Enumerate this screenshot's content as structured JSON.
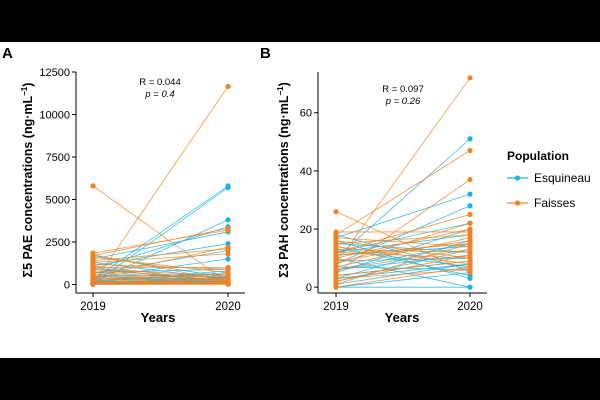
{
  "background_color": "#000000",
  "panel_background_color": "#ffffff",
  "chart_data": [
    {
      "type": "line",
      "panel_label": "A",
      "title": "",
      "xlabel": "Years",
      "ylabel": "Σ5 PAE concentrations (ng·mL",
      "ylabel_superscript": "−1",
      "ylabel_close": ")",
      "x": [
        "2019",
        "2020"
      ],
      "ylim": [
        -500,
        12500
      ],
      "yticks": [
        0,
        2500,
        5000,
        7500,
        10000,
        12500
      ],
      "ytick_labels": [
        "0",
        "2500",
        "5000",
        "7500",
        "10000",
        "12500"
      ],
      "annotation": {
        "r_label": "R = 0.044",
        "p_label": "p = 0.4"
      },
      "series": [
        {
          "name": "Esquineau",
          "color": "#1ab3ea",
          "pairs": [
            [
              50,
              5700
            ],
            [
              300,
              5800
            ],
            [
              120,
              3800
            ],
            [
              900,
              3400
            ],
            [
              1500,
              3100
            ],
            [
              1100,
              2400
            ],
            [
              650,
              2000
            ],
            [
              400,
              1500
            ],
            [
              700,
              900
            ],
            [
              200,
              800
            ],
            [
              500,
              600
            ],
            [
              350,
              500
            ],
            [
              60,
              450
            ],
            [
              250,
              400
            ],
            [
              150,
              350
            ],
            [
              100,
              300
            ],
            [
              40,
              250
            ],
            [
              900,
              200
            ],
            [
              30,
              150
            ],
            [
              400,
              120
            ],
            [
              80,
              100
            ],
            [
              200,
              80
            ],
            [
              1000,
              60
            ],
            [
              20,
              50
            ],
            [
              10,
              30
            ],
            [
              1700,
              400
            ],
            [
              1300,
              300
            ],
            [
              150,
              700
            ],
            [
              80,
              200
            ],
            [
              500,
              100
            ]
          ]
        },
        {
          "name": "Faisses",
          "color": "#f58220",
          "pairs": [
            [
              30,
              11650
            ],
            [
              5800,
              100
            ],
            [
              1850,
              3200
            ],
            [
              1700,
              3300
            ],
            [
              1400,
              2100
            ],
            [
              1300,
              1800
            ],
            [
              1200,
              900
            ],
            [
              1000,
              1000
            ],
            [
              900,
              500
            ],
            [
              800,
              400
            ],
            [
              700,
              300
            ],
            [
              600,
              200
            ],
            [
              500,
              250
            ],
            [
              400,
              150
            ],
            [
              300,
              100
            ],
            [
              200,
              80
            ],
            [
              150,
              60
            ],
            [
              100,
              50
            ],
            [
              50,
              40
            ],
            [
              20,
              30
            ],
            [
              1750,
              200
            ],
            [
              1600,
              700
            ],
            [
              1100,
              150
            ],
            [
              450,
              2200
            ],
            [
              250,
              600
            ],
            [
              80,
              350
            ],
            [
              60,
              20
            ],
            [
              10,
              10
            ]
          ]
        }
      ]
    },
    {
      "type": "line",
      "panel_label": "B",
      "title": "",
      "xlabel": "Years",
      "ylabel": "Σ3 PAH concentrations (ng·mL",
      "ylabel_superscript": "−1",
      "ylabel_close": ")",
      "x": [
        "2019",
        "2020"
      ],
      "ylim": [
        -2,
        74
      ],
      "yticks": [
        0,
        20,
        40,
        60
      ],
      "ytick_labels": [
        "0",
        "20",
        "40",
        "60"
      ],
      "annotation": {
        "r_label": "R = 0.097",
        "p_label": "p = 0.26"
      },
      "series": [
        {
          "name": "Esquineau",
          "color": "#1ab3ea",
          "pairs": [
            [
              10,
              51
            ],
            [
              17,
              32
            ],
            [
              8,
              28
            ],
            [
              12,
              22
            ],
            [
              5,
              20
            ],
            [
              3,
              16
            ],
            [
              11,
              14
            ],
            [
              2,
              13
            ],
            [
              15,
              12
            ],
            [
              6,
              11
            ],
            [
              9,
              10
            ],
            [
              4,
              9
            ],
            [
              1,
              8
            ],
            [
              13,
              7
            ],
            [
              7,
              6
            ],
            [
              18,
              6
            ],
            [
              0,
              5
            ],
            [
              14,
              4
            ],
            [
              16,
              3
            ],
            [
              0,
              0
            ],
            [
              10,
              0
            ],
            [
              6,
              15
            ],
            [
              12,
              18
            ],
            [
              3,
              8
            ]
          ]
        },
        {
          "name": "Faisses",
          "color": "#f58220",
          "pairs": [
            [
              8,
              72
            ],
            [
              18,
              47
            ],
            [
              5,
              37
            ],
            [
              12,
              25
            ],
            [
              26,
              5
            ],
            [
              10,
              20
            ],
            [
              15,
              18
            ],
            [
              7,
              17
            ],
            [
              9,
              16
            ],
            [
              11,
              15
            ],
            [
              17,
              14
            ],
            [
              6,
              13
            ],
            [
              13,
              12
            ],
            [
              2,
              11
            ],
            [
              16,
              10
            ],
            [
              4,
              9
            ],
            [
              14,
              8
            ],
            [
              0,
              7
            ],
            [
              3,
              6
            ],
            [
              19,
              19
            ],
            [
              8,
              22
            ],
            [
              1,
              15
            ],
            [
              12,
              10
            ]
          ]
        }
      ]
    }
  ],
  "legend": {
    "title": "Population",
    "items": [
      {
        "label": "Esquineau",
        "color": "#1ab3ea"
      },
      {
        "label": "Faisses",
        "color": "#f58220"
      }
    ]
  }
}
